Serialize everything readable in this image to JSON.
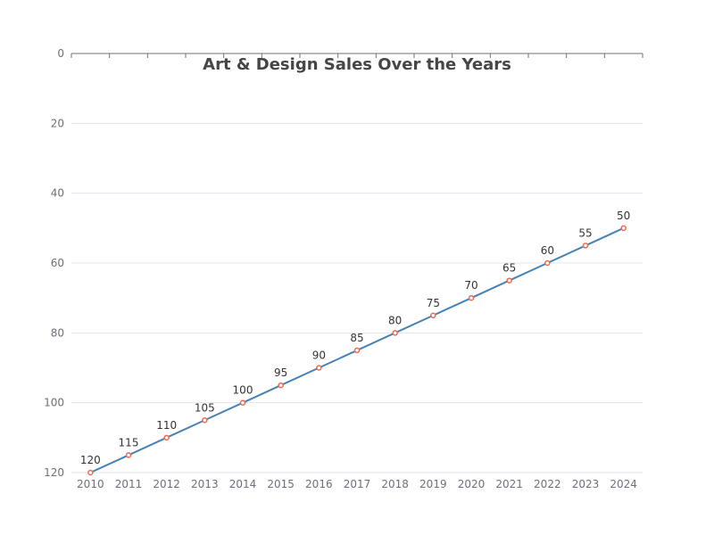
{
  "chart_data": {
    "type": "line",
    "title": "Art & Design Sales Over the Years",
    "xlabel": "",
    "ylabel": "",
    "categories": [
      "2010",
      "2011",
      "2012",
      "2013",
      "2014",
      "2015",
      "2016",
      "2017",
      "2018",
      "2019",
      "2020",
      "2021",
      "2022",
      "2023",
      "2024"
    ],
    "series": [
      {
        "values": [
          120,
          115,
          110,
          105,
          100,
          95,
          90,
          85,
          80,
          75,
          70,
          65,
          60,
          55,
          50
        ]
      }
    ],
    "yticks": [
      "0",
      "20",
      "40",
      "60",
      "80",
      "100",
      "120"
    ],
    "ylim": [
      0,
      120
    ],
    "y_inverted": true,
    "grid": true,
    "show_data_labels": true,
    "colors": {
      "line": "#4682b4",
      "marker": "#ee6a50",
      "grid": "#e0e6f1",
      "axis": "#6e7079"
    }
  }
}
